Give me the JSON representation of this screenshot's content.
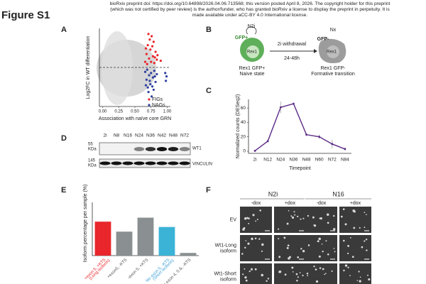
{
  "header": {
    "lines": [
      "bioRxiv preprint doi: https://doi.org/10.64898/2026.04.06.713568; this version posted April 8, 2026. The copyright holder for this preprint",
      "(which was not certified by peer review) is the author/funder, who has granted bioRxiv a license to display the preprint in perpetuity. It is",
      "made available under aCC-BY 4.0 International license."
    ]
  },
  "figure_title": "Figure S1",
  "panel_a": {
    "label": "A",
    "type": "scatter",
    "xlabel": "Association with naïve core GRN",
    "ylabel": "Log2FC in WT differentiation",
    "xlim": [
      -0.05,
      1.05
    ],
    "xticks": [
      {
        "value": 0,
        "label": "0.00"
      },
      {
        "value": 0.25,
        "label": "0.25"
      },
      {
        "value": 0.5,
        "label": "0.50"
      },
      {
        "value": 0.75,
        "label": "0.75"
      },
      {
        "value": 1,
        "label": "1.00"
      }
    ],
    "ylim": [
      -3.5,
      3.5
    ],
    "series": [
      {
        "name": "FIGs",
        "color": "#e8262b",
        "x": [
          0.66,
          0.68,
          0.7,
          0.72,
          0.74,
          0.76,
          0.78,
          0.8,
          0.82,
          0.84,
          0.69,
          0.71,
          0.75,
          0.77,
          0.79,
          0.81,
          0.73,
          0.67,
          0.85,
          0.9
        ],
        "y": [
          0.5,
          1.2,
          2.0,
          0.8,
          1.6,
          2.8,
          1.0,
          0.4,
          1.4,
          0.7,
          0.3,
          3.0,
          0.5,
          1.9,
          2.3,
          0.9,
          2.5,
          1.7,
          1.1,
          0.6
        ]
      },
      {
        "name": "NAGs",
        "color": "#2e3f9e",
        "x": [
          0.66,
          0.68,
          0.7,
          0.72,
          0.74,
          0.76,
          0.78,
          0.8,
          0.82,
          0.84,
          0.69,
          0.71,
          0.75,
          0.77,
          0.79,
          0.81,
          0.73,
          0.67,
          0.97,
          0.98,
          0.99
        ],
        "y": [
          -0.4,
          -1.1,
          -1.8,
          -0.7,
          -1.5,
          -2.6,
          -0.9,
          -0.3,
          -1.3,
          -0.6,
          -0.2,
          -2.2,
          -0.5,
          -1.7,
          -2.0,
          -0.8,
          -1.2,
          -1.6,
          -0.5,
          -1.2,
          -0.8
        ]
      }
    ]
  },
  "panel_b": {
    "label": "B",
    "n2i": "N2i",
    "gfp_pos": "GFP+",
    "rex1_left": "Rex1",
    "left_caption": [
      "Rex1 GFP+",
      "Naive state"
    ],
    "arrow_top": "2i withdrawal",
    "arrow_bottom": "24-48h",
    "nx": "Nx",
    "gfp_neg": "GFP-",
    "rex1_right": "Rex1",
    "right_caption": [
      "Rex1 GFP-",
      "Formative transition"
    ]
  },
  "panel_c": {
    "label": "C",
    "type": "line",
    "xlabel": "Timepoint",
    "ylabel": "Normalized counts (DESeq2)",
    "categories": [
      "2i",
      "N12",
      "N24",
      "N36",
      "N48",
      "N60",
      "N72",
      "N84"
    ],
    "values": [
      0.5,
      14,
      61,
      66,
      23,
      20,
      10,
      3
    ],
    "errors": [
      0.5,
      2,
      8,
      1,
      2,
      3,
      6,
      2
    ],
    "color": "#5b2a86",
    "ylim": [
      -3,
      72
    ],
    "yticks": [
      0,
      20,
      40,
      60
    ]
  },
  "panel_d": {
    "label": "D",
    "lanes": [
      "2i",
      "N8",
      "N16",
      "N24",
      "N36",
      "N42",
      "N48",
      "N72"
    ],
    "markers": [
      [
        "55",
        "KDa"
      ],
      [
        "145",
        "KDa"
      ]
    ],
    "proteins": [
      "WT1",
      "VINCULIN"
    ]
  },
  "panel_e": {
    "label": "E",
    "type": "bar",
    "ylabel": "Isoform percentage per sample (%)",
    "categories": [
      [
        "+exon 5, +KTS",
        "(Long isoform)"
      ],
      [
        "+exon5, -KTS"
      ],
      [
        "-exon 5, +KTS"
      ],
      [
        "No exon 5, -KTS",
        "(Short isoform)"
      ],
      [
        "No exon 4, 5 &, -KTS"
      ]
    ],
    "values": [
      25.5,
      18,
      28.5,
      21.5,
      2
    ],
    "colors": [
      "#e8262b",
      "#8a8f91",
      "#8a8f91",
      "#3bb3d6",
      "#8a8f91"
    ],
    "label_colors": [
      "#e8262b",
      "#555555",
      "#555555",
      "#3b9ed6",
      "#555555"
    ],
    "ylim": [
      0,
      40
    ]
  },
  "panel_f": {
    "label": "F",
    "groups": [
      "N2i",
      "N16"
    ],
    "conditions": [
      "-dox",
      "+dox",
      "-dox",
      "+dox"
    ],
    "rows": [
      [
        "EV"
      ],
      [
        "Wt1-Long",
        "isoform"
      ],
      [
        "Wt1-Short",
        "isoform"
      ]
    ]
  }
}
